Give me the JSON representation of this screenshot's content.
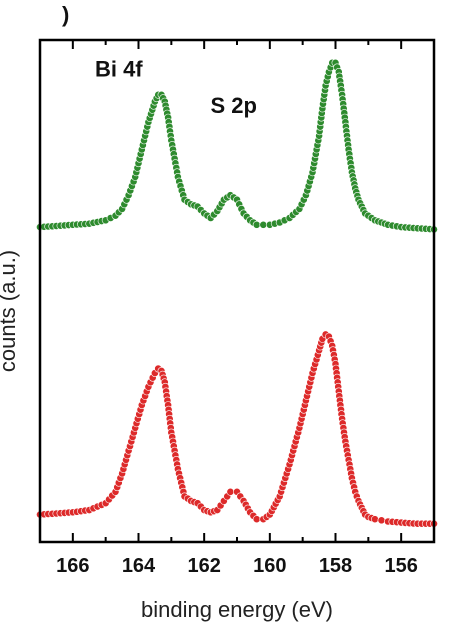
{
  "panel_label": ")",
  "chart_data": {
    "type": "scatter",
    "title": "",
    "xlabel": "binding energy (eV)",
    "ylabel": "counts (a.u.)",
    "xlim": [
      167,
      155
    ],
    "x_reversed": true,
    "ylim": [
      0,
      2.2
    ],
    "y_ticks_shown": false,
    "grid": false,
    "legend": "none",
    "x_ticks": [
      166,
      164,
      162,
      160,
      158,
      156
    ],
    "x_tick_labels": [
      "166",
      "164",
      "162",
      "160",
      "158",
      "156"
    ],
    "annotations": [
      {
        "text": "Bi 4f",
        "x": 164.6,
        "y": 2.04
      },
      {
        "text": "S 2p",
        "x": 161.1,
        "y": 1.88
      }
    ],
    "series": [
      {
        "color": "#2e8b2e",
        "x": [
          167.0,
          166.5,
          166.0,
          165.5,
          165.0,
          164.7,
          164.5,
          164.3,
          164.1,
          163.9,
          163.7,
          163.5,
          163.4,
          163.3,
          163.2,
          163.1,
          163.0,
          162.8,
          162.6,
          162.4,
          162.2,
          162.0,
          161.8,
          161.6,
          161.4,
          161.2,
          161.0,
          160.8,
          160.6,
          160.4,
          160.2,
          160.0,
          159.7,
          159.4,
          159.1,
          158.9,
          158.7,
          158.5,
          158.4,
          158.3,
          158.2,
          158.1,
          158.0,
          157.9,
          157.8,
          157.7,
          157.6,
          157.5,
          157.4,
          157.3,
          157.2,
          157.1,
          157.0,
          156.8,
          156.6,
          156.4,
          156.0,
          155.5,
          155.0
        ],
        "y": [
          1.38,
          1.385,
          1.39,
          1.395,
          1.41,
          1.43,
          1.46,
          1.52,
          1.6,
          1.72,
          1.84,
          1.93,
          1.96,
          1.96,
          1.93,
          1.86,
          1.76,
          1.6,
          1.5,
          1.48,
          1.47,
          1.44,
          1.42,
          1.45,
          1.5,
          1.52,
          1.5,
          1.44,
          1.41,
          1.39,
          1.39,
          1.39,
          1.4,
          1.42,
          1.46,
          1.52,
          1.62,
          1.78,
          1.9,
          2.0,
          2.06,
          2.1,
          2.1,
          2.06,
          1.96,
          1.84,
          1.72,
          1.62,
          1.55,
          1.5,
          1.47,
          1.44,
          1.43,
          1.41,
          1.4,
          1.39,
          1.38,
          1.375,
          1.37
        ]
      },
      {
        "color": "#dd2a2a",
        "x": [
          167.0,
          166.5,
          166.0,
          165.5,
          165.0,
          164.7,
          164.5,
          164.3,
          164.1,
          163.9,
          163.7,
          163.5,
          163.4,
          163.3,
          163.2,
          163.1,
          163.0,
          162.8,
          162.6,
          162.4,
          162.2,
          162.0,
          161.8,
          161.6,
          161.4,
          161.2,
          161.0,
          160.8,
          160.6,
          160.4,
          160.2,
          160.0,
          159.7,
          159.4,
          159.1,
          158.9,
          158.7,
          158.5,
          158.4,
          158.3,
          158.2,
          158.1,
          158.0,
          157.9,
          157.8,
          157.7,
          157.6,
          157.5,
          157.4,
          157.3,
          157.2,
          157.1,
          157.0,
          156.8,
          156.6,
          156.4,
          156.0,
          155.5,
          155.0
        ],
        "y": [
          0.12,
          0.125,
          0.13,
          0.14,
          0.17,
          0.22,
          0.3,
          0.4,
          0.5,
          0.6,
          0.68,
          0.74,
          0.76,
          0.75,
          0.7,
          0.6,
          0.48,
          0.32,
          0.2,
          0.18,
          0.17,
          0.14,
          0.13,
          0.14,
          0.18,
          0.22,
          0.22,
          0.18,
          0.13,
          0.1,
          0.1,
          0.12,
          0.2,
          0.34,
          0.5,
          0.62,
          0.74,
          0.84,
          0.89,
          0.91,
          0.9,
          0.86,
          0.78,
          0.66,
          0.54,
          0.44,
          0.36,
          0.28,
          0.22,
          0.18,
          0.15,
          0.12,
          0.11,
          0.1,
          0.095,
          0.09,
          0.085,
          0.08,
          0.08
        ]
      }
    ]
  }
}
